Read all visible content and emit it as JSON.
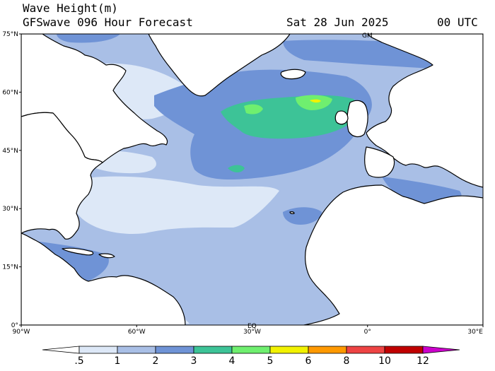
{
  "header": {
    "title": "Wave Height(m)",
    "subtitle": "GFSwave 096 Hour Forecast",
    "date": "Sat 28 Jun 2025",
    "time": "00 UTC"
  },
  "axes": {
    "lat_ticks": [
      "75°N",
      "60°N",
      "45°N",
      "30°N",
      "15°N",
      "0°"
    ],
    "lon_ticks": [
      "90°W",
      "60°W",
      "30°W",
      "0°",
      "30°E"
    ],
    "lat_range": [
      0,
      75
    ],
    "lon_range": [
      -90,
      30
    ]
  },
  "map_labels": {
    "top": "GM",
    "bottom": "EQ"
  },
  "legend": {
    "labels": [
      ".5",
      "1",
      "2",
      "3",
      "4",
      "5",
      "6",
      "8",
      "10",
      "12"
    ],
    "colors": [
      "#ffffff",
      "#dde8f7",
      "#a9bfe6",
      "#6f93d6",
      "#3dc397",
      "#6fef6f",
      "#f2f200",
      "#ff9900",
      "#ee4444",
      "#c00000",
      "#cc00cc"
    ]
  },
  "colors": {
    "land": "#ffffff",
    "coast": "#000000",
    "sea_1_2": "#a9bfe6",
    "sea_2_3": "#6f93d6",
    "sea_05_1": "#dde8f7",
    "sea_3_4": "#3dc397",
    "sea_4_5": "#6fef6f",
    "sea_5_6": "#f2f200"
  }
}
